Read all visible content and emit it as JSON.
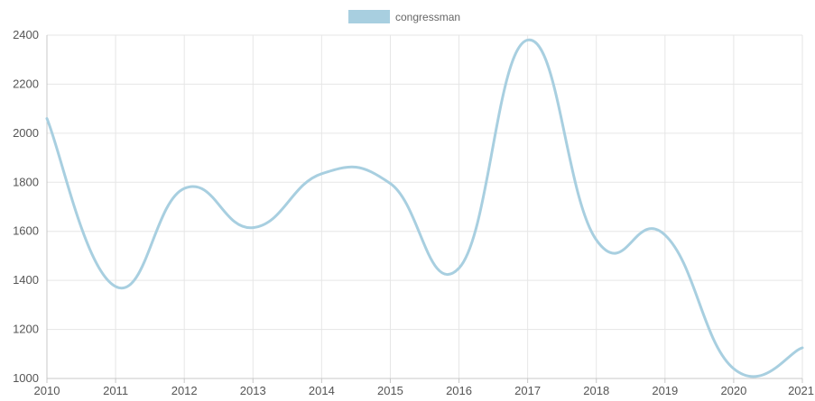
{
  "chart_data": {
    "type": "line",
    "smooth": true,
    "legend_position": "top-center",
    "grid": true,
    "x": [
      "2010",
      "2011",
      "2012",
      "2013",
      "2014",
      "2015",
      "2016",
      "2017",
      "2018",
      "2019",
      "2020",
      "2021"
    ],
    "series": [
      {
        "name": "congressman",
        "color": "#a8cfe0",
        "values": [
          2060,
          1375,
          1775,
          1615,
          1835,
          1795,
          1450,
          2380,
          1565,
          1585,
          1040,
          1125
        ]
      }
    ],
    "ylim": [
      1000,
      2400
    ],
    "yticks": [
      1000,
      1200,
      1400,
      1600,
      1800,
      2000,
      2200,
      2400
    ],
    "title": "",
    "xlabel": "",
    "ylabel": ""
  }
}
